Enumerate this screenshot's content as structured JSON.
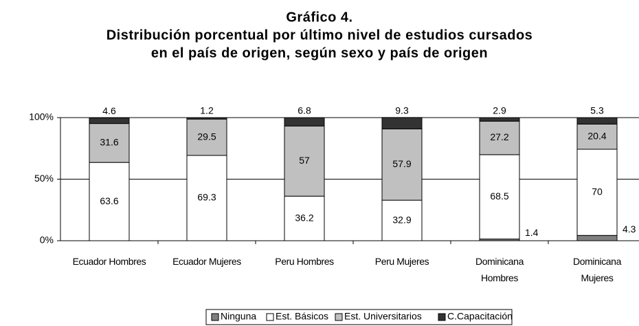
{
  "chart_data": {
    "type": "stacked_bar",
    "title": "Gráfico 4.",
    "subtitle": [
      "Distribución porcentual por último nivel de estudios cursados",
      "en el país de origen, según sexo y país de origen"
    ],
    "categories": [
      "Ecuador Hombres",
      "Ecuador Mujeres",
      "Peru Hombres",
      "Peru Mujeres",
      "Dominicana Hombres",
      "Dominicana Mujeres"
    ],
    "series": [
      {
        "name": "Ninguna",
        "color": "#808080",
        "values": [
          null,
          null,
          null,
          null,
          1.4,
          4.3
        ]
      },
      {
        "name": "Est. Básicos",
        "color": "#ffffff",
        "values": [
          63.6,
          69.3,
          36.2,
          32.9,
          68.5,
          70
        ]
      },
      {
        "name": "Est. Universitarios",
        "color": "#c0c0c0",
        "values": [
          31.6,
          29.5,
          57,
          57.9,
          27.2,
          20.4
        ]
      },
      {
        "name": "C.Capacitación",
        "color": "#333333",
        "values": [
          4.6,
          1.2,
          6.8,
          9.3,
          2.9,
          5.3
        ]
      }
    ],
    "ylim": [
      0,
      100
    ],
    "yticks": [
      {
        "value": 0,
        "label": "0%"
      },
      {
        "value": 50,
        "label": "50%"
      },
      {
        "value": 100,
        "label": "100%"
      }
    ],
    "grid": true,
    "legend": "bottom"
  }
}
